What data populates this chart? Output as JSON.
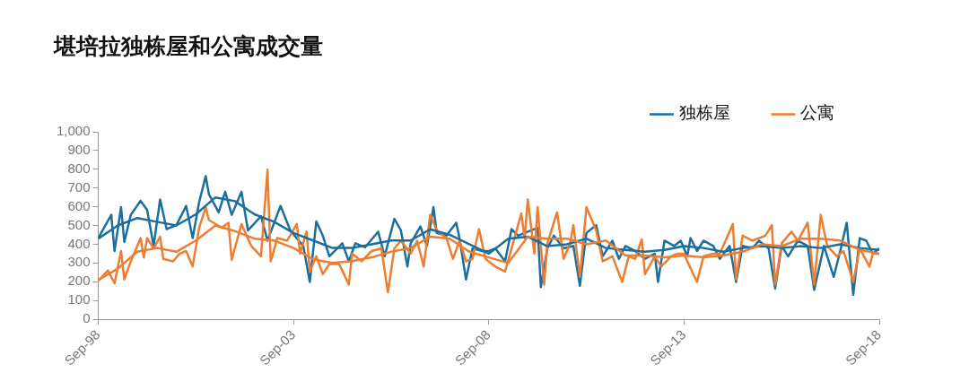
{
  "chart_data": {
    "type": "line",
    "title": "堪培拉独栋屋和公寓成交量",
    "marker": "none",
    "legend": "top right",
    "xlim": [
      "1998-09",
      "2018-09"
    ],
    "xticks": [
      {
        "value": "1998-09",
        "label": "Sep-98"
      },
      {
        "value": "2003-09",
        "label": "Sep-03"
      },
      {
        "value": "2008-09",
        "label": "Sep-08"
      },
      {
        "value": "2013-09",
        "label": "Sep-13"
      },
      {
        "value": "2018-09",
        "label": "Sep-18"
      }
    ],
    "ylim": [
      0,
      1000
    ],
    "yticks": [
      0,
      100,
      200,
      300,
      400,
      500,
      600,
      700,
      800,
      900,
      {
        "value": 1000,
        "label": "1,000"
      }
    ],
    "series": [
      {
        "name": "独栋屋",
        "color": "#1b6f9e",
        "x": [
          "1998-09",
          "1999-01",
          "1999-02",
          "1999-04",
          "1999-05",
          "1999-07",
          "1999-10",
          "1999-12",
          "2000-02",
          "2000-04",
          "2000-06",
          "2000-09",
          "2000-12",
          "2001-02",
          "2001-04",
          "2001-06",
          "2001-07",
          "2001-10",
          "2001-12",
          "2002-02",
          "2002-05",
          "2002-07",
          "2002-11",
          "2003-01",
          "2003-05",
          "2003-08",
          "2003-12",
          "2004-02",
          "2004-04",
          "2004-06",
          "2004-08",
          "2004-12",
          "2005-02",
          "2005-04",
          "2005-07",
          "2005-11",
          "2006-01",
          "2006-04",
          "2006-06",
          "2006-08",
          "2006-09",
          "2006-12",
          "2007-02",
          "2007-04",
          "2007-05",
          "2007-08",
          "2007-11",
          "2007-12",
          "2008-02",
          "2008-04",
          "2008-07",
          "2008-09",
          "2008-11",
          "2009-02",
          "2009-04",
          "2009-06",
          "2009-09",
          "2009-12",
          "2010-01",
          "2010-03",
          "2010-05",
          "2010-08",
          "2010-11",
          "2011-01",
          "2011-03",
          "2011-06",
          "2011-08",
          "2011-11",
          "2012-01",
          "2012-03",
          "2012-06",
          "2012-09",
          "2012-12",
          "2013-01",
          "2013-03",
          "2013-06",
          "2013-08",
          "2013-10",
          "2013-11",
          "2014-01",
          "2014-03",
          "2014-06",
          "2014-08",
          "2014-11",
          "2015-01",
          "2015-03",
          "2015-06",
          "2015-08",
          "2015-11",
          "2016-01",
          "2016-03",
          "2016-05",
          "2016-08",
          "2016-11",
          "2017-01",
          "2017-04",
          "2017-07",
          "2017-09",
          "2017-11",
          "2018-01",
          "2018-03",
          "2018-05",
          "2018-07",
          "2018-09"
        ],
        "values": [
          433,
          557,
          364,
          598,
          412,
          557,
          632,
          584,
          391,
          639,
          481,
          502,
          605,
          433,
          625,
          763,
          667,
          570,
          680,
          557,
          680,
          474,
          550,
          419,
          605,
          474,
          391,
          199,
          522,
          446,
          336,
          405,
          309,
          405,
          384,
          467,
          336,
          536,
          474,
          281,
          405,
          495,
          391,
          598,
          460,
          446,
          515,
          433,
          212,
          378,
          364,
          364,
          378,
          309,
          481,
          446,
          467,
          488,
          171,
          378,
          446,
          378,
          391,
          178,
          460,
          502,
          336,
          419,
          322,
          391,
          364,
          322,
          350,
          199,
          419,
          391,
          419,
          336,
          433,
          364,
          419,
          391,
          322,
          391,
          199,
          391,
          378,
          419,
          378,
          164,
          391,
          336,
          419,
          391,
          157,
          391,
          226,
          364,
          515,
          130,
          433,
          419,
          350,
          378
        ]
      },
      {
        "name": "公寓",
        "color": "#ed7d31",
        "x": [
          "1998-09",
          "1998-12",
          "1999-02",
          "1999-04",
          "1999-05",
          "1999-07",
          "1999-10",
          "1999-11",
          "1999-12",
          "2000-02",
          "2000-04",
          "2000-05",
          "2000-08",
          "2000-10",
          "2000-12",
          "2001-02",
          "2001-04",
          "2001-06",
          "2001-07",
          "2001-11",
          "2002-01",
          "2002-02",
          "2002-05",
          "2002-08",
          "2002-11",
          "2003-01",
          "2003-02",
          "2003-04",
          "2003-07",
          "2003-10",
          "2003-11",
          "2004-01",
          "2004-02",
          "2004-04",
          "2004-06",
          "2004-08",
          "2004-11",
          "2005-02",
          "2005-03",
          "2005-06",
          "2005-09",
          "2005-12",
          "2006-02",
          "2006-04",
          "2006-06",
          "2006-09",
          "2006-11",
          "2007-01",
          "2007-03",
          "2007-05",
          "2007-08",
          "2007-10",
          "2007-12",
          "2008-02",
          "2008-04",
          "2008-06",
          "2008-08",
          "2008-11",
          "2009-02",
          "2009-04",
          "2009-07",
          "2009-08",
          "2009-09",
          "2009-11",
          "2009-12",
          "2010-02",
          "2010-03",
          "2010-06",
          "2010-08",
          "2010-10",
          "2010-11",
          "2011-01",
          "2011-03",
          "2011-06",
          "2011-08",
          "2011-11",
          "2012-02",
          "2012-04",
          "2012-06",
          "2012-08",
          "2012-09",
          "2012-12",
          "2013-02",
          "2013-05",
          "2013-07",
          "2013-09",
          "2013-10",
          "2014-01",
          "2014-03",
          "2014-06",
          "2014-08",
          "2014-12",
          "2015-01",
          "2015-03",
          "2015-06",
          "2015-10",
          "2015-12",
          "2016-01",
          "2016-03",
          "2016-06",
          "2016-08",
          "2016-11",
          "2017-01",
          "2017-03",
          "2017-05",
          "2017-08",
          "2017-10",
          "2018-01",
          "2018-03",
          "2018-06",
          "2018-07",
          "2018-09"
        ],
        "values": [
          205,
          260,
          192,
          364,
          212,
          309,
          433,
          329,
          433,
          378,
          440,
          322,
          309,
          350,
          364,
          281,
          488,
          598,
          529,
          488,
          515,
          316,
          508,
          391,
          336,
          798,
          309,
          433,
          419,
          508,
          350,
          467,
          254,
          336,
          240,
          295,
          295,
          185,
          350,
          309,
          364,
          378,
          144,
          378,
          419,
          350,
          419,
          281,
          557,
          474,
          433,
          322,
          419,
          309,
          322,
          481,
          322,
          281,
          254,
          378,
          564,
          433,
          639,
          350,
          598,
          185,
          405,
          570,
          322,
          405,
          502,
          226,
          598,
          474,
          309,
          336,
          199,
          336,
          322,
          426,
          240,
          336,
          281,
          336,
          350,
          350,
          309,
          199,
          336,
          350,
          350,
          508,
          212,
          446,
          419,
          446,
          502,
          185,
          405,
          467,
          419,
          515,
          185,
          557,
          391,
          336,
          364,
          199,
          378,
          281,
          350,
          350
        ]
      },
      {
        "color": "#1b6f9e",
        "x": [
          "1998-09",
          "1999-03",
          "1999-09",
          "2000-03",
          "2000-09",
          "2001-03",
          "2001-09",
          "2002-03",
          "2002-09",
          "2003-03",
          "2003-09",
          "2004-03",
          "2004-09",
          "2005-03",
          "2005-09",
          "2006-03",
          "2006-09",
          "2007-03",
          "2007-09",
          "2008-03",
          "2008-09",
          "2009-03",
          "2009-09",
          "2010-03",
          "2010-09",
          "2011-03",
          "2011-09",
          "2012-03",
          "2012-09",
          "2013-03",
          "2013-09",
          "2014-03",
          "2014-09",
          "2015-03",
          "2015-09",
          "2016-03",
          "2016-09",
          "2017-03",
          "2017-09",
          "2018-03",
          "2018-09"
        ],
        "values": [
          430,
          500,
          540,
          520,
          500,
          560,
          650,
          630,
          560,
          520,
          460,
          420,
          380,
          380,
          400,
          420,
          420,
          480,
          450,
          400,
          350,
          430,
          440,
          390,
          400,
          430,
          380,
          370,
          360,
          370,
          390,
          380,
          360,
          380,
          390,
          380,
          390,
          380,
          400,
          380,
          370
        ]
      },
      {
        "color": "#ed7d31",
        "x": [
          "1998-09",
          "1999-03",
          "1999-09",
          "2000-03",
          "2000-09",
          "2001-03",
          "2001-09",
          "2002-03",
          "2002-09",
          "2003-03",
          "2003-09",
          "2004-03",
          "2004-09",
          "2005-03",
          "2005-09",
          "2006-03",
          "2006-09",
          "2007-03",
          "2007-09",
          "2008-03",
          "2008-09",
          "2009-03",
          "2009-09",
          "2010-03",
          "2010-09",
          "2011-03",
          "2011-09",
          "2012-03",
          "2012-09",
          "2013-03",
          "2013-09",
          "2014-03",
          "2014-09",
          "2015-03",
          "2015-09",
          "2016-03",
          "2016-09",
          "2017-03",
          "2017-09",
          "2018-03",
          "2018-09"
        ],
        "values": [
          210,
          270,
          360,
          380,
          360,
          420,
          500,
          470,
          430,
          420,
          380,
          320,
          300,
          310,
          330,
          360,
          380,
          440,
          430,
          360,
          330,
          300,
          440,
          430,
          430,
          400,
          420,
          340,
          340,
          330,
          340,
          330,
          340,
          360,
          400,
          390,
          430,
          430,
          420,
          370,
          350
        ]
      }
    ]
  }
}
